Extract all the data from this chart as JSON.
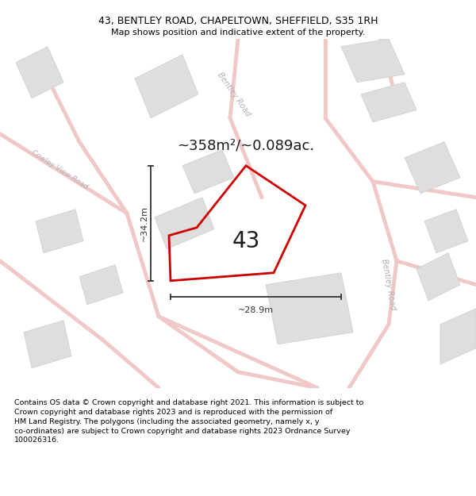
{
  "title_line1": "43, BENTLEY ROAD, CHAPELTOWN, SHEFFIELD, S35 1RH",
  "title_line2": "Map shows position and indicative extent of the property.",
  "area_text": "~358m²/~0.089ac.",
  "label_43": "43",
  "dim_height": "~34.2m",
  "dim_width": "~28.9m",
  "road_label_bentley_road_right": "Bentley Road",
  "road_label_bentley_road_top": "Bentley Road",
  "road_label_cowley": "Cowley View Road",
  "footer_text": "Contains OS data © Crown copyright and database right 2021. This information is subject to Crown copyright and database rights 2023 and is reproduced with the permission of HM Land Registry. The polygons (including the associated geometry, namely x, y co-ordinates) are subject to Crown copyright and database rights 2023 Ordnance Survey 100026316.",
  "map_bg": "#f7f6f4",
  "building_fill": "#e0dedd",
  "building_edge": "#cccccc",
  "road_color": "#f0c8c8",
  "property_stroke": "#cc0000",
  "property_fill": "none",
  "dim_color": "#333333",
  "road_label_color": "#b0b0b0",
  "title_fontsize": 9,
  "subtitle_fontsize": 8,
  "footer_fontsize": 6.8,
  "area_fontsize": 13,
  "label_fontsize": 20,
  "dim_fontsize": 8,
  "road_label_fontsize": 7
}
